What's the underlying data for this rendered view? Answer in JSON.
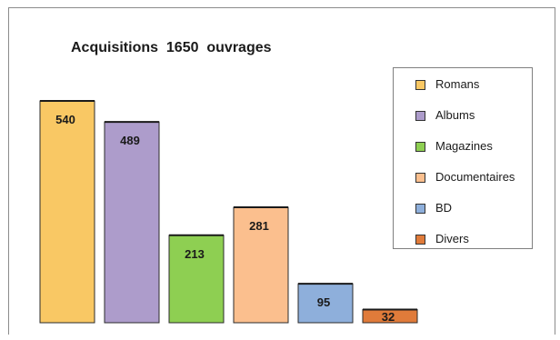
{
  "chart_data": {
    "type": "bar",
    "title": "Acquisitions  1650  ouvrages",
    "categories": [
      "Romans",
      "Albums",
      "Magazines",
      "Documentaires",
      "BD",
      "Divers"
    ],
    "values": [
      540,
      489,
      213,
      281,
      95,
      32
    ],
    "colors": [
      "#f9c864",
      "#ad9ccb",
      "#8ecf52",
      "#fbbf8e",
      "#8eafdb",
      "#e07b3a"
    ],
    "ylim": [
      0,
      560
    ],
    "legend_position": "right",
    "grid": false
  }
}
